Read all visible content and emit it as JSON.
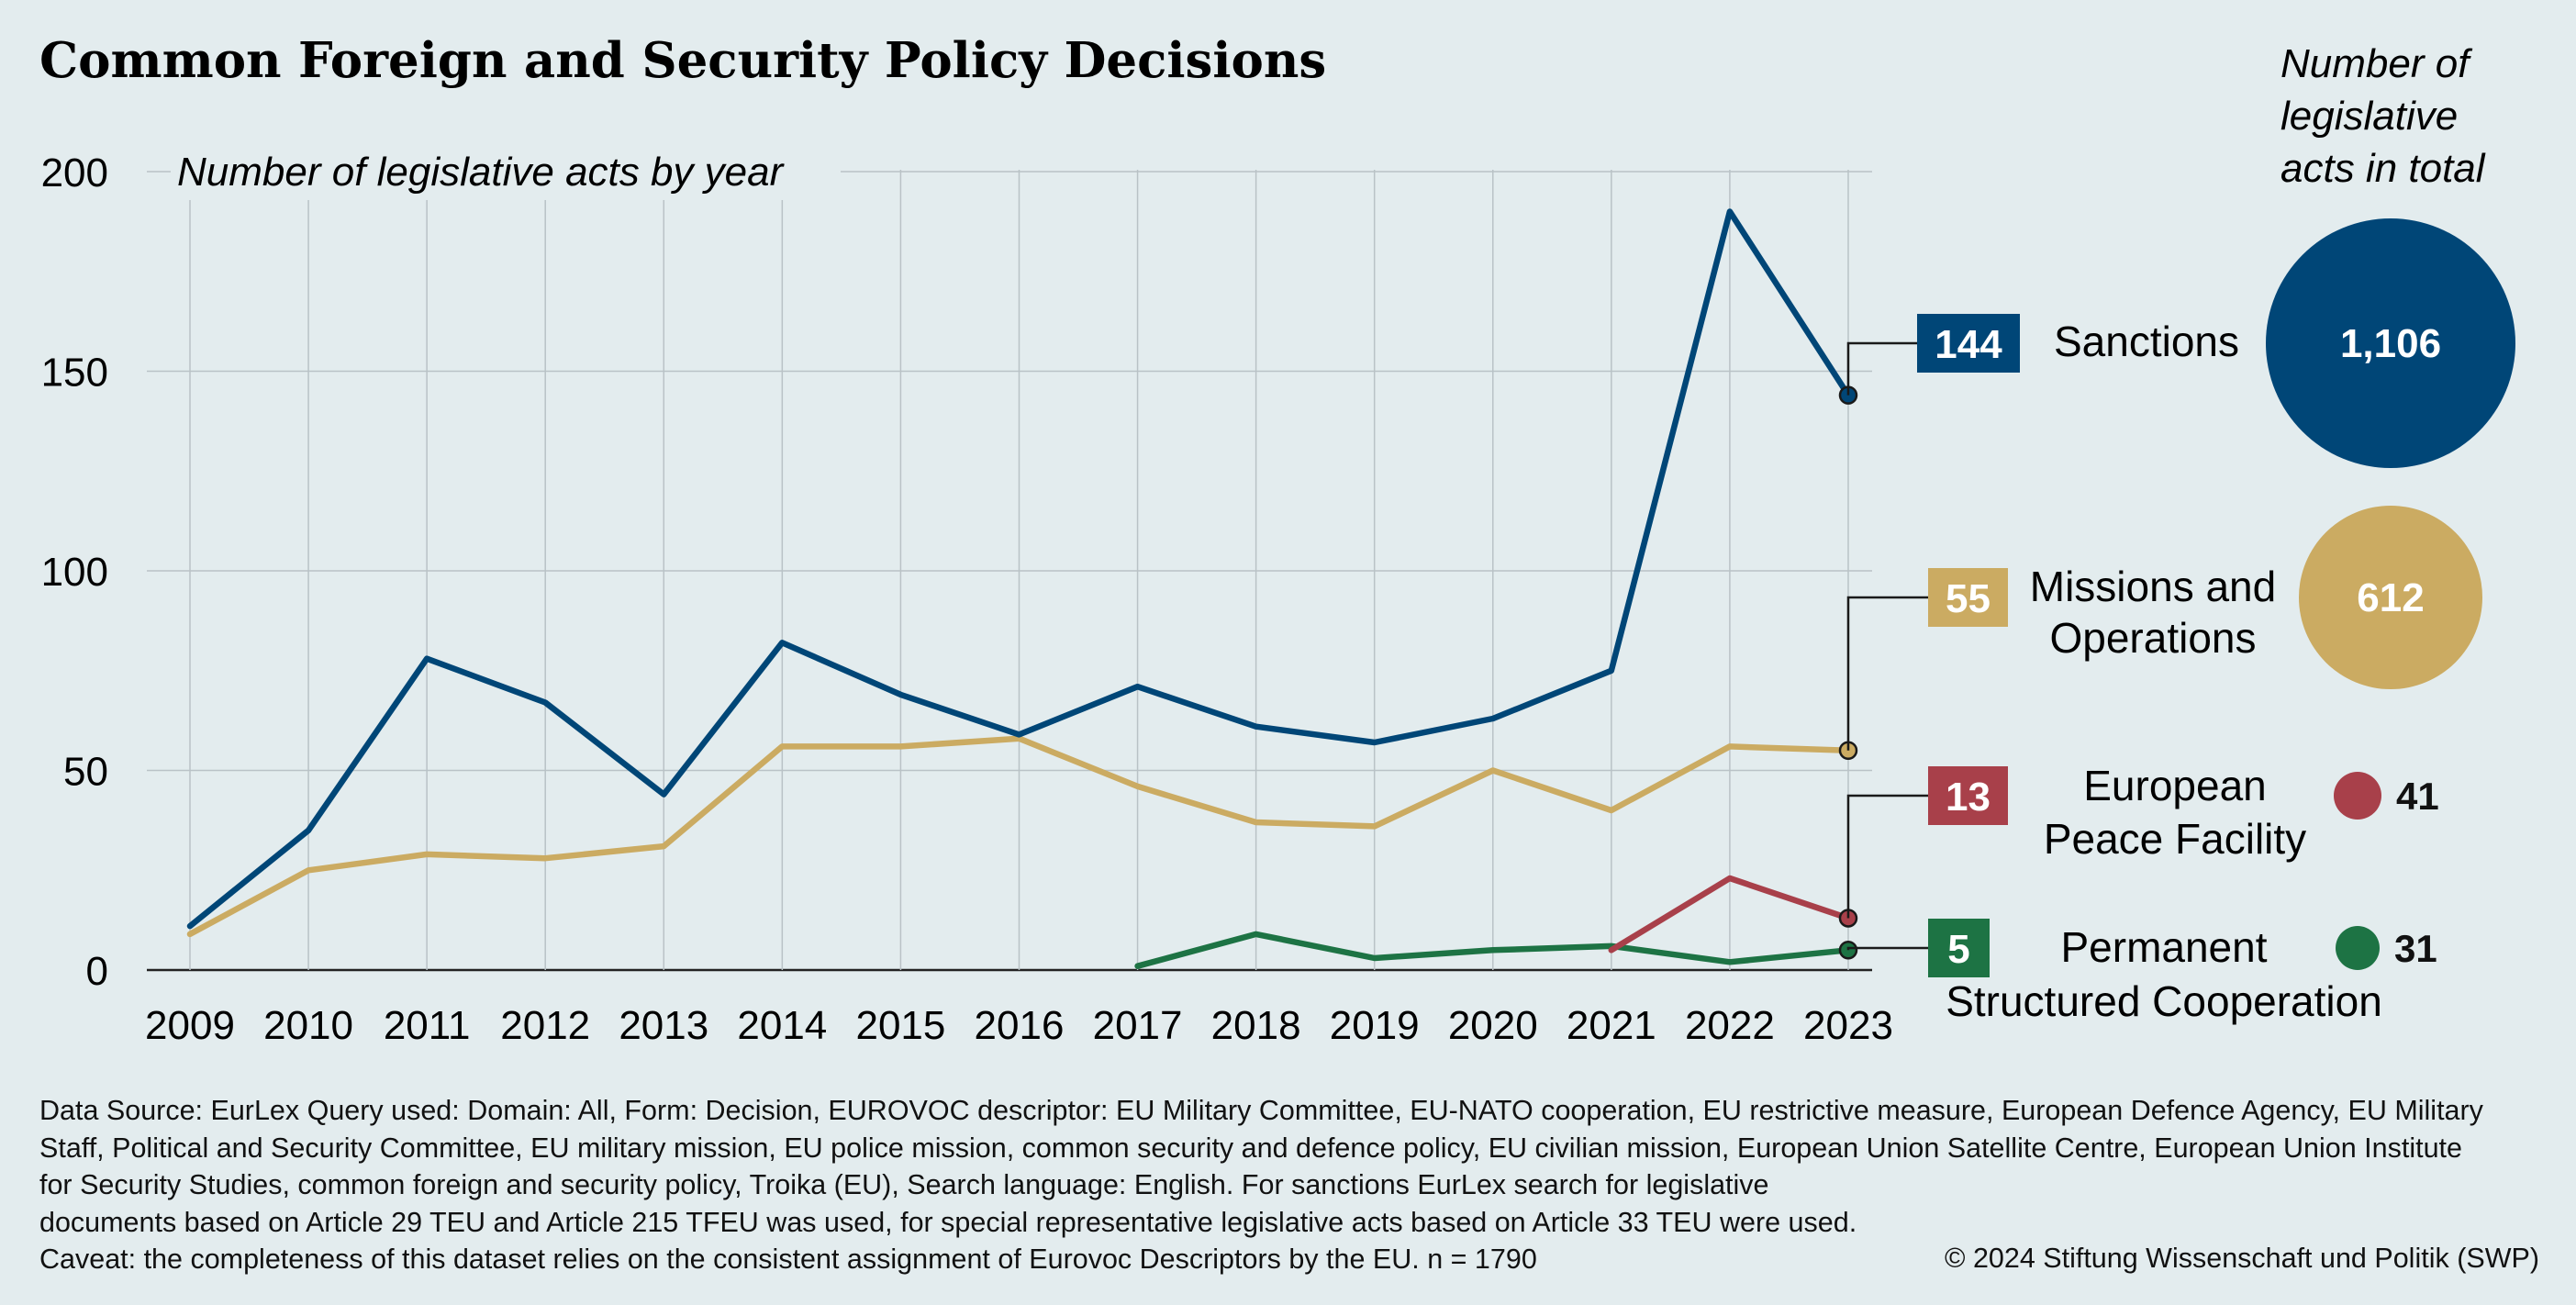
{
  "title": "Common Foreign and Security Policy Decisions",
  "subtitle": "Number of legislative acts by year",
  "totals_heading": [
    "Number of",
    "legislative",
    "acts in total"
  ],
  "colors": {
    "sanctions": "#004677",
    "missions": "#cbab62",
    "epf": "#a8404a",
    "pesco": "#1d7344",
    "grid": "#b9c2c6",
    "background": "#e3ecee"
  },
  "chart_data": {
    "type": "line",
    "x": [
      2009,
      2010,
      2011,
      2012,
      2013,
      2014,
      2015,
      2016,
      2017,
      2018,
      2019,
      2020,
      2021,
      2022,
      2023
    ],
    "ylim": [
      0,
      200
    ],
    "yticks": [
      0,
      50,
      100,
      150,
      200
    ],
    "grid": true,
    "series": [
      {
        "name": "Sanctions",
        "key": "sanctions",
        "x": [
          2009,
          2010,
          2011,
          2012,
          2013,
          2014,
          2015,
          2016,
          2017,
          2018,
          2019,
          2020,
          2021,
          2022,
          2023
        ],
        "values": [
          11,
          35,
          78,
          67,
          44,
          82,
          69,
          59,
          71,
          61,
          57,
          63,
          75,
          190,
          144
        ],
        "last_value": "144",
        "total": "1,106"
      },
      {
        "name": "Missions and Operations",
        "label_lines": [
          "Missions and",
          "Operations"
        ],
        "key": "missions",
        "x": [
          2009,
          2010,
          2011,
          2012,
          2013,
          2014,
          2015,
          2016,
          2017,
          2018,
          2019,
          2020,
          2021,
          2022,
          2023
        ],
        "values": [
          9,
          25,
          29,
          28,
          31,
          56,
          56,
          58,
          46,
          37,
          36,
          50,
          40,
          56,
          55
        ],
        "last_value": "55",
        "total": "612"
      },
      {
        "name": "European Peace Facility",
        "label_lines": [
          "European",
          "Peace Facility"
        ],
        "key": "epf",
        "x": [
          2021,
          2022,
          2023
        ],
        "values": [
          5,
          23,
          13
        ],
        "last_value": "13",
        "total": "41"
      },
      {
        "name": "Permanent Structured Cooperation",
        "label_lines": [
          "Permanent",
          "Structured Cooperation"
        ],
        "key": "pesco",
        "x": [
          2017,
          2018,
          2019,
          2020,
          2021,
          2022,
          2023
        ],
        "values": [
          1,
          9,
          3,
          5,
          6,
          2,
          5
        ],
        "last_value": "5",
        "total": "31"
      }
    ]
  },
  "footer": {
    "lines": [
      "Data Source: EurLex Query used: Domain: All, Form: Decision, EUROVOC descriptor: EU Military Committee, EU-NATO cooperation, EU restrictive measure, European Defence Agency, EU Military",
      "Staff, Political and Security Committee, EU military mission, EU police mission, common security and defence policy, EU civilian mission, European Union Satellite Centre, European Union Institute",
      "for  Security Studies, common foreign and security policy, Troika (EU), Search language: English. For sanctions EurLex search for legislative",
      "documents based on Article 29 TEU and Article 215 TFEU was used, for special representative legislative acts based on Article 33 TEU were used.",
      "Caveat: the completeness of this dataset relies on the consistent assignment of Eurovoc Descriptors by the EU. n = 1790"
    ],
    "copyright": "© 2024 Stiftung Wissenschaft und Politik (SWP)"
  }
}
